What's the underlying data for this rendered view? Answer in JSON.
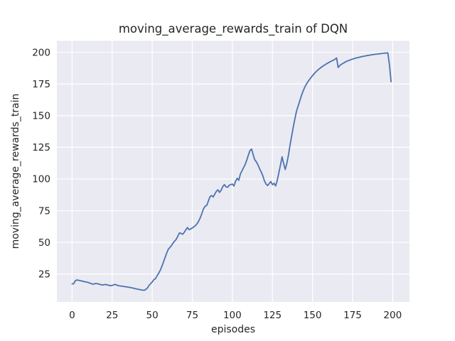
{
  "figure": {
    "title": "moving_average_rewards_train of DQN",
    "xlabel": "episodes",
    "ylabel": "moving_average_rewards_train"
  },
  "chart_data": {
    "type": "line",
    "title": "moving_average_rewards_train of DQN",
    "xlabel": "episodes",
    "ylabel": "moving_average_rewards_train",
    "x_description": "episode index, one point per episode, 0 through 199",
    "x_start": 0,
    "x_step": 1,
    "series": [
      {
        "name": "moving_average_rewards_train",
        "values": [
          17.2,
          17.4,
          19.8,
          20.3,
          20.1,
          19.8,
          19.5,
          19.2,
          18.9,
          18.7,
          18.4,
          17.9,
          17.4,
          17.0,
          17.3,
          17.6,
          17.3,
          17.0,
          16.6,
          16.4,
          16.6,
          16.8,
          16.4,
          16.1,
          15.8,
          16.0,
          16.5,
          16.8,
          16.2,
          15.8,
          15.6,
          15.4,
          15.3,
          15.0,
          14.9,
          14.7,
          14.4,
          14.2,
          13.9,
          13.6,
          13.3,
          13.0,
          12.8,
          12.5,
          12.3,
          12.2,
          12.9,
          14.0,
          16.0,
          17.4,
          18.8,
          20.6,
          21.3,
          23.6,
          25.6,
          28.0,
          31.0,
          34.5,
          38.0,
          41.5,
          44.5,
          46.0,
          47.5,
          49.5,
          51.0,
          52.5,
          55.0,
          57.5,
          57.0,
          56.4,
          58.0,
          60.0,
          61.7,
          60.0,
          60.6,
          61.4,
          62.3,
          63.3,
          64.8,
          66.8,
          69.5,
          73.0,
          76.5,
          78.5,
          79.2,
          82.5,
          86.0,
          87.0,
          85.8,
          88.0,
          90.3,
          91.5,
          89.4,
          91.2,
          94.0,
          95.6,
          93.8,
          93.5,
          95.0,
          95.6,
          96.0,
          94.5,
          98.2,
          100.6,
          99.0,
          104.0,
          106.5,
          109.0,
          111.5,
          115.0,
          119.0,
          122.5,
          123.6,
          119.0,
          115.0,
          113.5,
          111.0,
          108.0,
          105.5,
          102.5,
          98.5,
          96.0,
          94.8,
          96.5,
          98.0,
          95.5,
          96.6,
          94.6,
          99.0,
          105.0,
          111.0,
          117.5,
          112.0,
          107.5,
          112.5,
          119.0,
          127.0,
          134.0,
          141.0,
          147.5,
          153.5,
          157.5,
          161.5,
          165.5,
          169.0,
          172.0,
          174.5,
          176.5,
          178.3,
          180.0,
          181.5,
          183.0,
          184.4,
          185.6,
          186.7,
          187.7,
          188.6,
          189.5,
          190.3,
          191.1,
          191.8,
          192.5,
          193.1,
          193.7,
          194.5,
          195.5,
          188.0,
          189.5,
          190.5,
          191.2,
          192.0,
          192.7,
          193.2,
          193.7,
          194.2,
          194.6,
          195.0,
          195.4,
          195.7,
          196.0,
          196.3,
          196.6,
          196.9,
          197.1,
          197.4,
          197.6,
          197.8,
          198.0,
          198.2,
          198.4,
          198.5,
          198.7,
          198.8,
          199.0,
          199.1,
          199.3,
          199.4,
          199.5,
          190.0,
          176.8
        ]
      }
    ],
    "xticks": [
      0,
      25,
      50,
      75,
      100,
      125,
      150,
      175,
      200
    ],
    "yticks": [
      25,
      50,
      75,
      100,
      125,
      150,
      175,
      200
    ],
    "xlim": [
      -9.5,
      210.5
    ],
    "ylim": [
      3,
      209
    ],
    "grid": true,
    "legend": false,
    "style": {
      "line_color": "#4C72B0",
      "axes_background": "#EAEAF2",
      "grid_color": "#FFFFFF",
      "text_color": "#262626",
      "figure_background": "#FFFFFF"
    }
  }
}
